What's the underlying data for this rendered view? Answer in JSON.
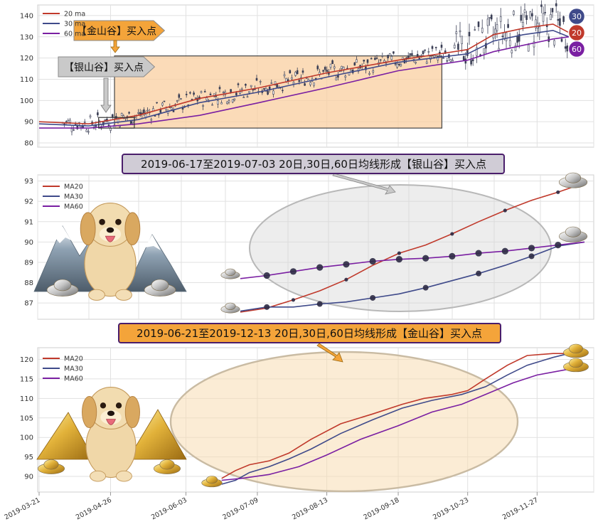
{
  "chart_data": [
    {
      "type": "candlestick",
      "legend": [
        "20 ma",
        "30 ma",
        "60 ma"
      ],
      "ylim": [
        78,
        145
      ],
      "yticks": [
        80,
        90,
        100,
        110,
        120,
        130,
        140
      ],
      "grid": true,
      "legend_placement": "top-left",
      "series": [
        {
          "name": "20 ma",
          "color": "#c0392b",
          "points": [
            [
              "2019-03-21",
              90
            ],
            [
              "2019-04-15",
              89
            ],
            [
              "2019-05-10",
              93
            ],
            [
              "2019-06-10",
              101
            ],
            [
              "2019-07-10",
              106
            ],
            [
              "2019-08-13",
              113
            ],
            [
              "2019-09-18",
              119
            ],
            [
              "2019-10-23",
              124
            ],
            [
              "2019-11-05",
              131
            ],
            [
              "2019-11-20",
              134
            ],
            [
              "2019-12-05",
              136
            ],
            [
              "2019-12-13",
              132
            ]
          ]
        },
        {
          "name": "30 ma",
          "color": "#3f4a8a",
          "points": [
            [
              "2019-03-21",
              89
            ],
            [
              "2019-04-15",
              88
            ],
            [
              "2019-05-10",
              91
            ],
            [
              "2019-06-10",
              99
            ],
            [
              "2019-07-10",
              104
            ],
            [
              "2019-08-13",
              111
            ],
            [
              "2019-09-18",
              118
            ],
            [
              "2019-10-23",
              122
            ],
            [
              "2019-11-05",
              128
            ],
            [
              "2019-11-20",
              131
            ],
            [
              "2019-12-05",
              133
            ],
            [
              "2019-12-13",
              130
            ]
          ]
        },
        {
          "name": "60 ma",
          "color": "#7a1fa2",
          "points": [
            [
              "2019-03-21",
              87
            ],
            [
              "2019-04-15",
              87
            ],
            [
              "2019-05-10",
              89
            ],
            [
              "2019-06-10",
              93
            ],
            [
              "2019-07-10",
              99
            ],
            [
              "2019-08-13",
              106
            ],
            [
              "2019-09-18",
              114
            ],
            [
              "2019-10-23",
              119
            ],
            [
              "2019-11-05",
              123
            ],
            [
              "2019-11-20",
              126
            ],
            [
              "2019-12-05",
              129
            ],
            [
              "2019-12-13",
              130
            ]
          ]
        }
      ],
      "annotations": {
        "gold_label": "【金山谷】买入点",
        "silver_label": "【银山谷】买入点",
        "badges": [
          "30",
          "20",
          "60"
        ],
        "gold_box": {
          "x_start": "2019-04-28",
          "x_end": "2019-10-10",
          "y_low": 87,
          "y_high": 121
        },
        "silver_box": {
          "x_start": "2019-04-20",
          "x_end": "2019-05-08",
          "y_low": 87,
          "y_high": 92
        }
      }
    },
    {
      "type": "line",
      "title": "2019-06-17至2019-07-03 20日,30日,60日均线形成【银山谷】买入点",
      "legend": [
        "MA20",
        "MA30",
        "MA60"
      ],
      "ylim": [
        86.2,
        93.3
      ],
      "yticks": [
        87,
        88,
        89,
        90,
        91,
        92,
        93
      ],
      "grid": true,
      "legend_placement": "top-left",
      "series": [
        {
          "name": "MA20",
          "color": "#c0392b",
          "values": [
            86.55,
            86.75,
            87.15,
            87.6,
            88.15,
            88.85,
            89.45,
            89.85,
            90.4,
            91.0,
            91.55,
            92.05,
            92.45,
            92.9
          ]
        },
        {
          "name": "MA30",
          "color": "#3f4a8a",
          "values": [
            86.6,
            86.8,
            86.8,
            86.95,
            87.05,
            87.25,
            87.45,
            87.75,
            88.1,
            88.45,
            88.85,
            89.3,
            89.8,
            90.0
          ]
        },
        {
          "name": "MA60",
          "color": "#7a1fa2",
          "values": [
            88.2,
            88.35,
            88.55,
            88.75,
            88.9,
            89.05,
            89.15,
            89.2,
            89.3,
            89.45,
            89.55,
            89.7,
            89.85,
            90.0
          ]
        }
      ]
    },
    {
      "type": "line",
      "title": "2019-06-21至2019-12-13 20日,30日,60日均线形成【金山谷】买入点",
      "legend": [
        "MA20",
        "MA30",
        "MA60"
      ],
      "ylim": [
        86,
        123
      ],
      "yticks": [
        90,
        95,
        100,
        105,
        110,
        115,
        120
      ],
      "xticks": [
        "2019-03-21",
        "2019-04-26",
        "2019-06-03",
        "2019-07-09",
        "2019-08-13",
        "2019-09-18",
        "2019-10-23",
        "2019-11-27"
      ],
      "grid": true,
      "legend_placement": "top-left",
      "series": [
        {
          "name": "MA20",
          "color": "#c0392b",
          "points": [
            [
              "2019-06-21",
              89.5
            ],
            [
              "2019-06-28",
              91.5
            ],
            [
              "2019-07-05",
              93
            ],
            [
              "2019-07-15",
              94
            ],
            [
              "2019-07-25",
              96
            ],
            [
              "2019-08-05",
              99.5
            ],
            [
              "2019-08-20",
              103.5
            ],
            [
              "2019-09-05",
              106
            ],
            [
              "2019-09-20",
              108.5
            ],
            [
              "2019-10-01",
              110
            ],
            [
              "2019-10-15",
              111
            ],
            [
              "2019-10-23",
              112
            ],
            [
              "2019-11-01",
              115
            ],
            [
              "2019-11-12",
              118.5
            ],
            [
              "2019-11-22",
              121
            ],
            [
              "2019-12-05",
              121.5
            ],
            [
              "2019-12-13",
              121.5
            ]
          ]
        },
        {
          "name": "MA30",
          "color": "#3f4a8a",
          "points": [
            [
              "2019-06-21",
              88
            ],
            [
              "2019-06-28",
              89
            ],
            [
              "2019-07-05",
              91
            ],
            [
              "2019-07-15",
              92.5
            ],
            [
              "2019-07-25",
              94.5
            ],
            [
              "2019-08-05",
              97
            ],
            [
              "2019-08-20",
              101
            ],
            [
              "2019-09-05",
              104.5
            ],
            [
              "2019-09-20",
              107.5
            ],
            [
              "2019-10-05",
              109.5
            ],
            [
              "2019-10-20",
              111
            ],
            [
              "2019-11-01",
              113
            ],
            [
              "2019-11-12",
              116
            ],
            [
              "2019-11-22",
              118.5
            ],
            [
              "2019-12-05",
              120.5
            ],
            [
              "2019-12-13",
              121.5
            ]
          ]
        },
        {
          "name": "MA60",
          "color": "#7a1fa2",
          "points": [
            [
              "2019-06-21",
              89
            ],
            [
              "2019-07-01",
              89.5
            ],
            [
              "2019-07-15",
              90.5
            ],
            [
              "2019-07-30",
              92.5
            ],
            [
              "2019-08-13",
              95.5
            ],
            [
              "2019-08-30",
              99.5
            ],
            [
              "2019-09-18",
              103
            ],
            [
              "2019-10-05",
              106.5
            ],
            [
              "2019-10-20",
              108.5
            ],
            [
              "2019-11-01",
              111
            ],
            [
              "2019-11-15",
              114
            ],
            [
              "2019-11-27",
              116
            ],
            [
              "2019-12-13",
              117.5
            ]
          ]
        }
      ]
    }
  ]
}
